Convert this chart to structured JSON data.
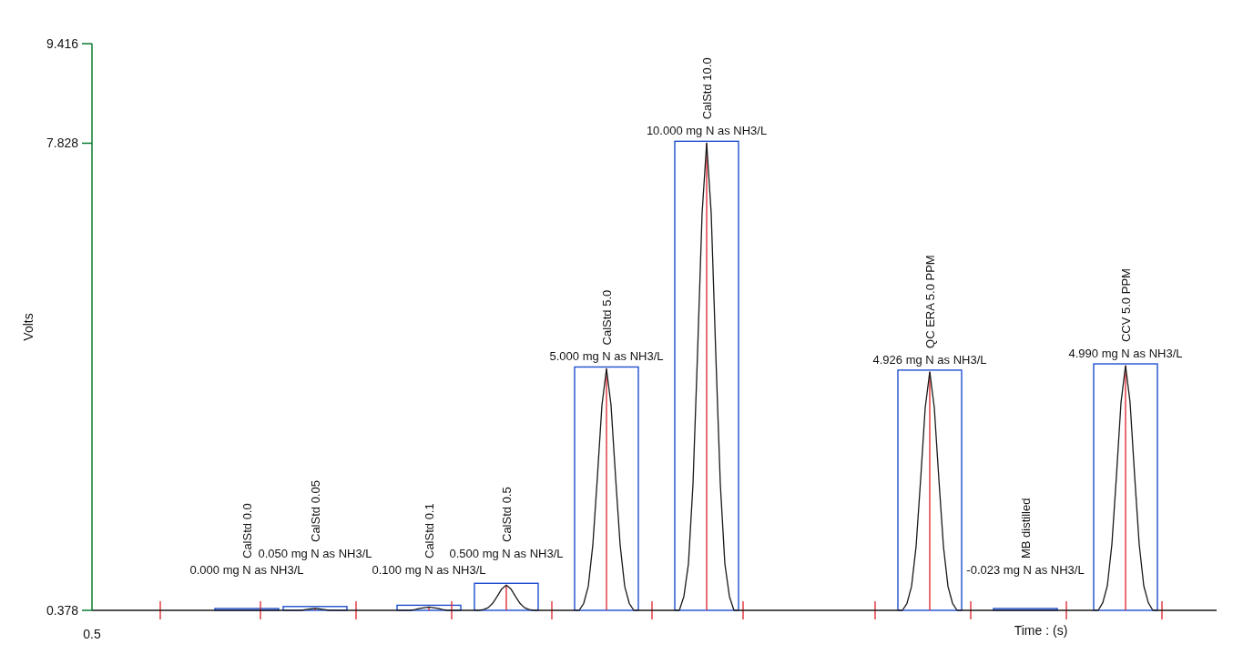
{
  "chart_data": {
    "type": "line",
    "xlabel": "Time : (s)",
    "ylabel": "Volts",
    "color": "#1a1a1a",
    "ylim": [
      0.378,
      9.416
    ],
    "yticks": [
      0.378,
      7.828,
      9.416
    ],
    "categories": [
      null,
      null,
      null,
      null,
      null,
      null,
      null,
      null,
      null,
      null,
      null,
      null,
      null,
      null,
      null,
      null,
      null,
      null,
      null,
      null,
      null,
      null,
      null,
      null,
      null,
      null,
      null,
      null,
      null,
      null,
      null,
      null,
      null,
      null,
      null,
      null,
      null,
      null,
      null,
      null,
      null,
      null,
      null,
      null,
      null,
      null,
      null,
      null,
      null,
      null,
      null,
      null,
      null,
      null,
      null,
      null,
      null,
      null,
      null,
      null,
      null,
      null,
      null,
      null,
      null,
      null,
      null,
      null,
      null,
      null,
      null,
      null,
      null,
      null,
      null,
      null,
      null,
      null,
      null,
      null,
      null,
      null,
      null,
      null,
      null,
      null,
      null,
      null,
      null,
      null,
      null,
      null,
      null,
      null,
      null,
      null,
      null,
      null,
      null,
      null,
      null,
      null,
      null,
      null,
      null,
      null,
      null,
      null,
      null,
      null,
      null,
      null,
      null,
      null,
      null,
      null,
      null,
      null,
      null,
      null,
      null,
      null,
      null,
      null,
      null,
      null,
      null,
      null,
      null,
      null,
      null,
      null,
      null,
      null,
      null,
      null,
      null,
      null,
      null,
      null,
      null,
      null,
      null,
      null,
      null,
      null,
      null,
      null,
      null,
      null,
      null,
      null,
      null,
      null,
      null,
      null,
      null,
      null,
      null,
      null,
      null,
      null,
      null,
      null,
      null,
      null,
      null,
      null,
      null,
      null,
      null,
      null,
      null,
      null,
      null,
      null,
      null,
      null,
      null,
      null,
      null,
      null,
      null,
      null,
      null,
      null,
      null,
      null,
      null,
      null,
      null,
      null,
      null,
      null,
      null,
      null,
      null,
      null,
      null,
      null,
      null,
      null,
      null,
      null,
      null,
      null,
      null,
      null,
      null,
      null,
      null,
      null,
      null,
      null,
      null,
      null,
      null,
      null,
      null,
      null,
      null,
      null,
      null,
      null,
      null,
      null,
      null,
      null,
      null,
      null,
      null,
      null,
      null,
      null,
      null,
      null,
      null,
      null,
      null,
      null,
      null,
      null,
      null,
      null,
      null,
      null,
      null,
      null
    ],
    "values": [
      0.378,
      0.378,
      0.378,
      0.378,
      0.378,
      0.378,
      0.378,
      0.378,
      0.378,
      0.378,
      0.378,
      0.378,
      0.378,
      0.378,
      0.378,
      0.378,
      0.378,
      0.378,
      0.378,
      0.378,
      0.378,
      0.378,
      0.378,
      0.378,
      0.378,
      0.378,
      0.378,
      0.378,
      0.378,
      0.378,
      0.378,
      0.378,
      0.378,
      0.378,
      0.378,
      0.378,
      0.378,
      0.378,
      0.378,
      0.378,
      0.378,
      0.378,
      0.378,
      0.378,
      0.378,
      0.378,
      0.378,
      0.39,
      0.4,
      0.41,
      0.4,
      0.39,
      0.378,
      0.378,
      0.378,
      0.378,
      0.378,
      0.378,
      0.378,
      0.378,
      0.378,
      0.378,
      0.378,
      0.378,
      0.378,
      0.378,
      0.378,
      0.378,
      0.378,
      0.378,
      0.378,
      0.39,
      0.41,
      0.42,
      0.43,
      0.42,
      0.41,
      0.39,
      0.378,
      0.378,
      0.378,
      0.378,
      0.378,
      0.378,
      0.378,
      0.378,
      0.39,
      0.42,
      0.49,
      0.6,
      0.72,
      0.78,
      0.72,
      0.6,
      0.49,
      0.42,
      0.39,
      0.378,
      0.378,
      0.378,
      0.378,
      0.378,
      0.378,
      0.378,
      0.378,
      0.378,
      0.378,
      0.378,
      0.49,
      0.76,
      1.42,
      2.5,
      3.65,
      4.23,
      3.65,
      2.5,
      1.42,
      0.76,
      0.49,
      0.378,
      0.378,
      0.378,
      0.378,
      0.378,
      0.378,
      0.378,
      0.378,
      0.378,
      0.378,
      0.378,
      0.6,
      1.12,
      2.39,
      4.48,
      6.71,
      7.83,
      6.71,
      4.48,
      2.39,
      1.12,
      0.6,
      0.378,
      0.378,
      0.378,
      0.378,
      0.378,
      0.378,
      0.378,
      0.378,
      0.378,
      0.378,
      0.378,
      0.378,
      0.378,
      0.378,
      0.378,
      0.378,
      0.378,
      0.378,
      0.378,
      0.378,
      0.378,
      0.378,
      0.378,
      0.378,
      0.378,
      0.378,
      0.378,
      0.378,
      0.378,
      0.378,
      0.378,
      0.378,
      0.378,
      0.378,
      0.378,
      0.378,
      0.378,
      0.378,
      0.49,
      0.76,
      1.4,
      2.47,
      3.61,
      4.18,
      3.61,
      2.47,
      1.4,
      0.76,
      0.49,
      0.378,
      0.378,
      0.378,
      0.378,
      0.378,
      0.378,
      0.378,
      0.378,
      0.378,
      0.378,
      0.378,
      0.378,
      0.378,
      0.378,
      0.378,
      0.378,
      0.378,
      0.378,
      0.378,
      0.378,
      0.378,
      0.378,
      0.378,
      0.378,
      0.378,
      0.378,
      0.378,
      0.378,
      0.378,
      0.378,
      0.378,
      0.378,
      0.5,
      0.77,
      1.43,
      2.52,
      3.69,
      4.28,
      3.69,
      2.52,
      1.43,
      0.77,
      0.5,
      0.378,
      0.378,
      0.378,
      0.378,
      0.378,
      0.378,
      0.378,
      0.378,
      0.378,
      0.378,
      0.378,
      0.378,
      0.378,
      0.378,
      0.378
    ],
    "annotations": [
      "CalStd 0.0",
      "0.000 mg N as NH3/L",
      "CalStd 0.05",
      "0.050 mg N as NH3/L",
      "CalStd 0.1",
      "0.100 mg N as NH3/L",
      "CalStd 0.5",
      "0.500 mg N as NH3/L",
      "CalStd 5.0",
      "5.000 mg N as NH3/L",
      "CalStd 10.0",
      "10.000 mg N as NH3/L",
      "QC ERA 5.0 PPM",
      "4.926 mg N as NH3/L",
      "MB distilled",
      "-0.023 mg N as NH3/L",
      "CCV 5.0 PPM",
      "4.990 mg N as NH3/L",
      "0.5"
    ]
  }
}
